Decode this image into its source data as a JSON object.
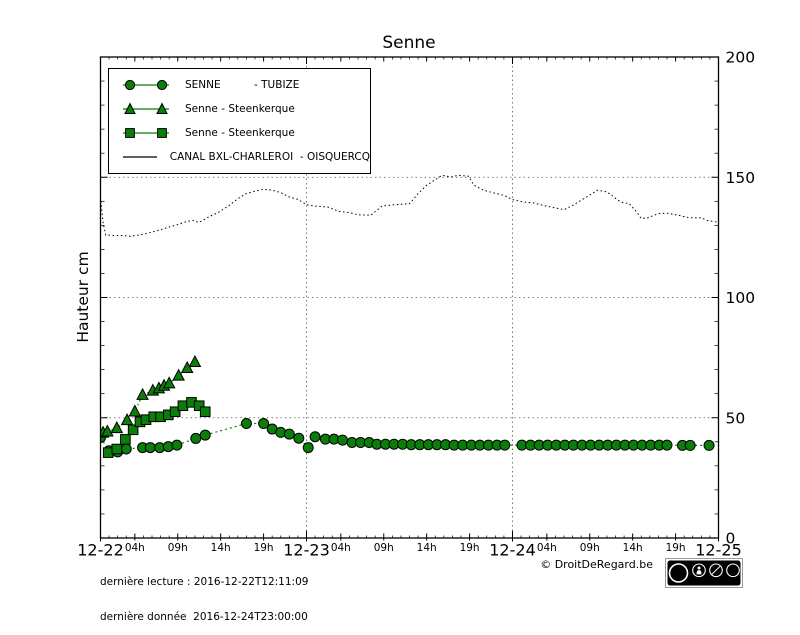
{
  "chart_data": {
    "type": "line",
    "title": "Senne",
    "ylabel": "Hauteur cm",
    "x_unit": "hours since 2016-12-22 00:00",
    "xlim": [
      0,
      72
    ],
    "ylim": [
      0,
      200
    ],
    "y_ticks": [
      0,
      50,
      100,
      150,
      200
    ],
    "y_minor_step": 10,
    "grid_y": [
      50,
      100,
      150
    ],
    "grid_x_hours": [
      24,
      48
    ],
    "x_day_ticks": [
      {
        "label": "12-22",
        "hour": 0
      },
      {
        "label": "12-23",
        "hour": 24
      },
      {
        "label": "12-24",
        "hour": 48
      },
      {
        "label": "12-25",
        "hour": 72
      }
    ],
    "x_hour_ticks": [
      {
        "label": "04h",
        "hour": 4
      },
      {
        "label": "09h",
        "hour": 9
      },
      {
        "label": "14h",
        "hour": 14
      },
      {
        "label": "19h",
        "hour": 19
      },
      {
        "label": "04h",
        "hour": 28
      },
      {
        "label": "09h",
        "hour": 33
      },
      {
        "label": "14h",
        "hour": 38
      },
      {
        "label": "19h",
        "hour": 43
      },
      {
        "label": "04h",
        "hour": 52
      },
      {
        "label": "09h",
        "hour": 57
      },
      {
        "label": "14h",
        "hour": 62
      },
      {
        "label": "19h",
        "hour": 67
      }
    ],
    "series": [
      {
        "name": "SENNE - TUBIZE",
        "marker": "circle",
        "color": "#0b7d0b",
        "line_dash": "dotted",
        "points": [
          [
            0,
            41.8
          ],
          [
            1,
            36.3
          ],
          [
            2,
            35.8
          ],
          [
            3,
            37
          ],
          [
            4.9,
            37.6
          ],
          [
            5.8,
            37.6
          ],
          [
            6.9,
            37.6
          ],
          [
            7.9,
            38
          ],
          [
            8.9,
            38.6
          ],
          [
            11.1,
            41.4
          ],
          [
            12.2,
            42.8
          ],
          [
            17,
            47.6
          ],
          [
            19,
            47.6
          ],
          [
            20,
            45.3
          ],
          [
            21,
            43.9
          ],
          [
            22,
            43.2
          ],
          [
            23.1,
            41.5
          ],
          [
            24.2,
            37.6
          ],
          [
            25,
            42.1
          ],
          [
            26.2,
            41.1
          ],
          [
            27.2,
            41.1
          ],
          [
            28.2,
            40.7
          ],
          [
            29.3,
            39.7
          ],
          [
            30.3,
            39.7
          ],
          [
            31.3,
            39.7
          ],
          [
            32.2,
            39
          ],
          [
            33.2,
            39
          ],
          [
            34.2,
            39
          ],
          [
            35.2,
            39
          ],
          [
            36.2,
            38.8
          ],
          [
            37.2,
            38.8
          ],
          [
            38.2,
            38.8
          ],
          [
            39.2,
            38.8
          ],
          [
            40.2,
            38.8
          ],
          [
            41.2,
            38.6
          ],
          [
            42.2,
            38.6
          ],
          [
            43.2,
            38.6
          ],
          [
            44.2,
            38.6
          ],
          [
            45.2,
            38.6
          ],
          [
            46.2,
            38.6
          ],
          [
            47.1,
            38.6
          ],
          [
            49.1,
            38.6
          ],
          [
            50.1,
            38.6
          ],
          [
            51.1,
            38.6
          ],
          [
            52.1,
            38.6
          ],
          [
            53.1,
            38.6
          ],
          [
            54.1,
            38.6
          ],
          [
            55.1,
            38.6
          ],
          [
            56.1,
            38.6
          ],
          [
            57.1,
            38.6
          ],
          [
            58.1,
            38.6
          ],
          [
            59.1,
            38.6
          ],
          [
            60.1,
            38.6
          ],
          [
            61.1,
            38.6
          ],
          [
            62.1,
            38.6
          ],
          [
            63.1,
            38.6
          ],
          [
            64.1,
            38.6
          ],
          [
            65.1,
            38.6
          ],
          [
            66,
            38.6
          ],
          [
            67.8,
            38.5
          ],
          [
            68.7,
            38.5
          ],
          [
            70.9,
            38.5
          ]
        ]
      },
      {
        "name": "Senne - Steenkerque",
        "marker": "triangle",
        "color": "#0b7d0b",
        "line_dash": "dashdot",
        "points": [
          [
            0.3,
            43.8
          ],
          [
            0.8,
            44.3
          ],
          [
            1.9,
            45.7
          ],
          [
            3.1,
            49
          ],
          [
            4,
            52.6
          ],
          [
            4.9,
            59.5
          ],
          [
            6.1,
            61.3
          ],
          [
            6.8,
            62.2
          ],
          [
            7.4,
            63.3
          ],
          [
            8,
            64.3
          ],
          [
            9.1,
            67.5
          ],
          [
            10.1,
            70.7
          ],
          [
            11,
            73.2
          ]
        ]
      },
      {
        "name": "Senne - Steenkerque",
        "marker": "square",
        "color": "#0b7d0b",
        "line_dash": "dashdot",
        "points": [
          [
            0.9,
            35.5
          ],
          [
            1.9,
            37
          ],
          [
            2.9,
            41
          ],
          [
            3.8,
            45
          ],
          [
            4.6,
            48.3
          ],
          [
            5.3,
            49.2
          ],
          [
            6.2,
            50.4
          ],
          [
            7,
            50.4
          ],
          [
            7.9,
            51.2
          ],
          [
            8.7,
            52.5
          ],
          [
            9.6,
            55
          ],
          [
            10.6,
            56.4
          ],
          [
            11.5,
            55
          ],
          [
            12.2,
            52.5
          ]
        ]
      },
      {
        "name": "CANAL BXL-CHARLEROI - OISQUERCQ",
        "marker": "none",
        "color": "#000000",
        "line_dash": "dense-dotted",
        "points": [
          [
            0.05,
            140
          ],
          [
            0.3,
            131
          ],
          [
            0.6,
            126
          ],
          [
            1.5,
            125.8
          ],
          [
            2.5,
            125.8
          ],
          [
            3.5,
            125.5
          ],
          [
            4.5,
            126
          ],
          [
            5.2,
            126.5
          ],
          [
            6,
            127.2
          ],
          [
            7,
            128.2
          ],
          [
            8,
            129.3
          ],
          [
            9,
            130.3
          ],
          [
            10,
            131.5
          ],
          [
            10.8,
            132.1
          ],
          [
            11.4,
            131.2
          ],
          [
            12,
            132.2
          ],
          [
            12.6,
            133.5
          ],
          [
            13.8,
            135.5
          ],
          [
            15,
            138.3
          ],
          [
            16,
            141.1
          ],
          [
            17,
            143.2
          ],
          [
            18,
            144.2
          ],
          [
            19,
            145
          ],
          [
            20,
            144.6
          ],
          [
            21,
            143.6
          ],
          [
            22,
            141.8
          ],
          [
            23,
            140.8
          ],
          [
            24,
            138.6
          ],
          [
            25,
            138
          ],
          [
            26.5,
            137.6
          ],
          [
            27.8,
            135.8
          ],
          [
            29,
            135.3
          ],
          [
            30,
            134.4
          ],
          [
            31.5,
            134.2
          ],
          [
            32.8,
            138
          ],
          [
            34,
            138.5
          ],
          [
            36,
            139
          ],
          [
            37,
            143.2
          ],
          [
            38,
            146.7
          ],
          [
            39.8,
            150.8
          ],
          [
            40.8,
            150.1
          ],
          [
            41.7,
            150.8
          ],
          [
            42.9,
            150.4
          ],
          [
            43.5,
            146.7
          ],
          [
            44.6,
            144.6
          ],
          [
            45.8,
            143.5
          ],
          [
            47,
            142.5
          ],
          [
            48,
            140.7
          ],
          [
            49.3,
            139.7
          ],
          [
            50.5,
            139.3
          ],
          [
            51.6,
            138.3
          ],
          [
            52.8,
            137.4
          ],
          [
            54,
            136.5
          ],
          [
            55,
            138.3
          ],
          [
            56.5,
            141.5
          ],
          [
            57.9,
            144.6
          ],
          [
            59,
            143.9
          ],
          [
            59.8,
            141.8
          ],
          [
            60.6,
            139.7
          ],
          [
            61.6,
            139
          ],
          [
            62.3,
            136.3
          ],
          [
            63,
            132.8
          ],
          [
            63.8,
            133.2
          ],
          [
            65,
            134.9
          ],
          [
            66,
            135.1
          ],
          [
            67.3,
            134.2
          ],
          [
            68.5,
            133.2
          ],
          [
            70,
            133.2
          ],
          [
            70.6,
            132.1
          ],
          [
            71.8,
            131.4
          ]
        ]
      }
    ]
  },
  "legend": {
    "items": [
      {
        "label": "SENNE          - TUBIZE",
        "marker": "circle"
      },
      {
        "label": "Senne - Steenkerque",
        "marker": "triangle"
      },
      {
        "label": "Senne - Steenkerque",
        "marker": "square"
      },
      {
        "label": "CANAL BXL-CHARLEROI  - OISQUERCQ",
        "marker": "none"
      }
    ]
  },
  "footer": {
    "last_reading": "dernière lecture : 2016-12-22T12:11:09",
    "last_data": "dernière donnée  2016-12-24T23:00:00",
    "copyright": "© DroitDeRegard.be",
    "license": {
      "badge_text": "CC",
      "labels": [
        "BY",
        "NC",
        "SA"
      ]
    }
  },
  "colors": {
    "series_green": "#0b7d0b",
    "canal_black": "#000000",
    "grid": "#555555",
    "background": "#ffffff"
  }
}
